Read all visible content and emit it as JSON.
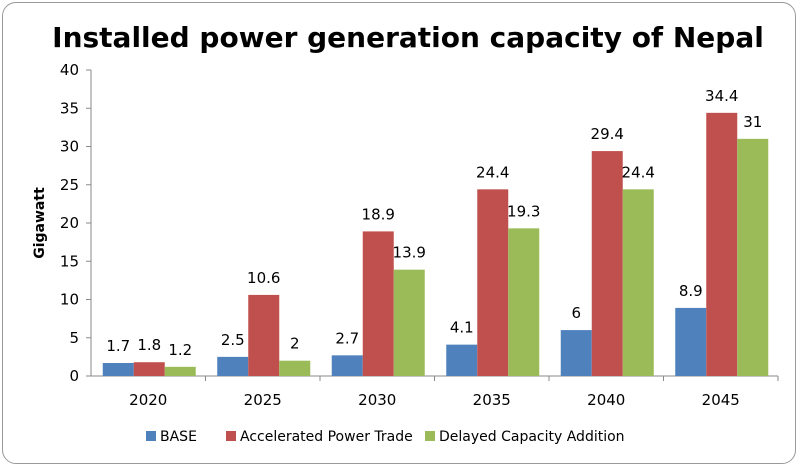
{
  "chart_data": {
    "type": "bar",
    "title": "Installed power generation capacity of Nepal",
    "xlabel": "",
    "ylabel": "Gigawatt",
    "ylim": [
      0,
      40
    ],
    "yticks": [
      0,
      5,
      10,
      15,
      20,
      25,
      30,
      35,
      40
    ],
    "grid": false,
    "legend": "bottom",
    "categories": [
      "2020",
      "2025",
      "2030",
      "2035",
      "2040",
      "2045"
    ],
    "series": [
      {
        "name": "BASE",
        "color": "#4F81BD",
        "values": [
          1.7,
          2.5,
          2.7,
          4.1,
          6,
          8.9
        ]
      },
      {
        "name": "Accelerated Power Trade",
        "color": "#C0504D",
        "values": [
          1.8,
          10.6,
          18.9,
          24.4,
          29.4,
          34.4
        ]
      },
      {
        "name": "Delayed Capacity Addition",
        "color": "#9BBB59",
        "values": [
          1.2,
          2,
          13.9,
          19.3,
          24.4,
          31
        ]
      }
    ]
  }
}
